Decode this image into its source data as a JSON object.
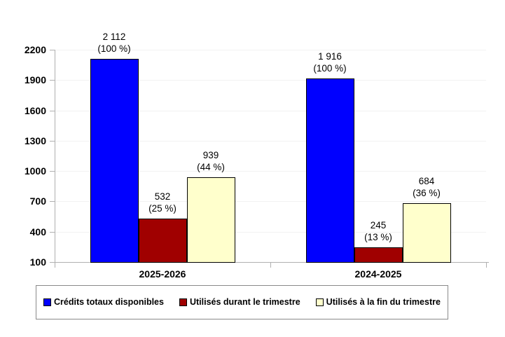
{
  "chart_data": {
    "type": "bar",
    "title": "",
    "categories": [
      "2025-2026",
      "2024-2025"
    ],
    "series": [
      {
        "name": "Crédits totaux disponibles",
        "color": "#0000FF",
        "values": [
          2112,
          1916
        ],
        "bar_labels": [
          [
            "2 112",
            "(100 %)"
          ],
          [
            "1 916",
            "(100 %)"
          ]
        ]
      },
      {
        "name": "Utilisés durant le trimestre",
        "color": "#A00000",
        "values": [
          532,
          245
        ],
        "bar_labels": [
          [
            "532",
            "(25 %)"
          ],
          [
            "245",
            "(13 %)"
          ]
        ]
      },
      {
        "name": "Utilisés à la fin du trimestre",
        "color": "#FFFFCC",
        "values": [
          939,
          684
        ],
        "bar_labels": [
          [
            "939",
            "(44 %)"
          ],
          [
            "684",
            "(36 %)"
          ]
        ]
      }
    ],
    "y_axis": {
      "min": 100,
      "max": 2200,
      "step": 300,
      "ticks": [
        100,
        400,
        700,
        1000,
        1300,
        1600,
        1900,
        2200
      ]
    },
    "x_axis": {
      "labels": [
        "2025-2026",
        "2024-2025"
      ]
    },
    "grid": true,
    "legend_position": "bottom",
    "colors": {
      "background": "#FFFFFF",
      "axis": "#B0B0B0",
      "gridline": "#F2F2F2",
      "bar_border": "#000000",
      "legend_border": "#8A8A8A",
      "text": "#000000"
    }
  }
}
